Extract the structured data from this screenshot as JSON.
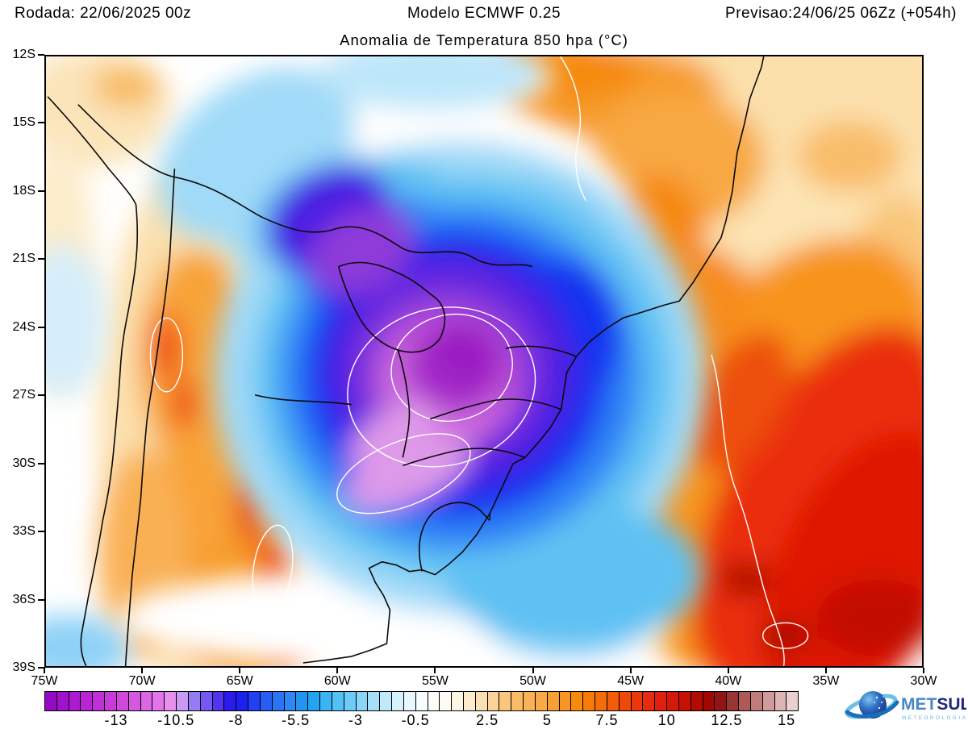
{
  "header": {
    "run": "Rodada: 22/06/2025 00z",
    "model": "Modelo ECMWF 0.25",
    "valid": "Previsao:24/06/25 06Zz (+054h)"
  },
  "title": "Anomalia de Temperatura 850 hpa (°C)",
  "map": {
    "lat_ticks": [
      "12S",
      "15S",
      "18S",
      "21S",
      "24S",
      "27S",
      "30S",
      "33S",
      "36S",
      "39S"
    ],
    "lon_ticks": [
      "75W",
      "70W",
      "65W",
      "60W",
      "55W",
      "50W",
      "45W",
      "40W",
      "35W",
      "30W"
    ]
  },
  "colorbar": {
    "min": -16,
    "max": 15.5,
    "step": 0.5,
    "tick_values": [
      -13,
      -10.5,
      -8,
      -5.5,
      -3,
      -0.5,
      2.5,
      5,
      7.5,
      10,
      12.5,
      15
    ],
    "tick_labels": [
      "-13",
      "-10.5",
      "-8",
      "-5.5",
      "-3",
      "-0.5",
      "2.5",
      "5",
      "7.5",
      "10",
      "12.5",
      "15"
    ],
    "anchors": [
      [
        -16,
        "#8f06c4"
      ],
      [
        -15,
        "#a816ce"
      ],
      [
        -14,
        "#bc2ad4"
      ],
      [
        -13,
        "#cd41da"
      ],
      [
        -12,
        "#d95ee2"
      ],
      [
        -11,
        "#e47ceb"
      ],
      [
        -10.5,
        "#eba4f1"
      ],
      [
        -10,
        "#a98df4"
      ],
      [
        -9.5,
        "#8468f2"
      ],
      [
        -9,
        "#6647f0"
      ],
      [
        -8.5,
        "#3c22ee"
      ],
      [
        -8,
        "#1b13ee"
      ],
      [
        -7.5,
        "#1e2ff2"
      ],
      [
        -7,
        "#2450f4"
      ],
      [
        -6.5,
        "#2a68f5"
      ],
      [
        -6,
        "#2e7ff6"
      ],
      [
        -5.5,
        "#2b8ff2"
      ],
      [
        -5,
        "#189aef"
      ],
      [
        -4.5,
        "#2fabf3"
      ],
      [
        -4,
        "#49bbf5"
      ],
      [
        -3.5,
        "#5fc6f6"
      ],
      [
        -3,
        "#79d0f7"
      ],
      [
        -2.5,
        "#97dbf8"
      ],
      [
        -2,
        "#b3e5fa"
      ],
      [
        -1.5,
        "#cceefb"
      ],
      [
        -1,
        "#e0f5fd"
      ],
      [
        -0.5,
        "#f0fafe"
      ],
      [
        0,
        "#ffffff"
      ],
      [
        1,
        "#fefaf0"
      ],
      [
        1.5,
        "#fdf1d8"
      ],
      [
        2,
        "#fce5bd"
      ],
      [
        2.5,
        "#fbd9a2"
      ],
      [
        3,
        "#fbcd89"
      ],
      [
        3.5,
        "#fac170"
      ],
      [
        4,
        "#f9b75e"
      ],
      [
        4.5,
        "#f9ad4d"
      ],
      [
        5,
        "#f8a43d"
      ],
      [
        5.5,
        "#f89b2e"
      ],
      [
        6,
        "#f78f1b"
      ],
      [
        6.5,
        "#f68307"
      ],
      [
        7,
        "#f57407"
      ],
      [
        7.5,
        "#f3650b"
      ],
      [
        8,
        "#f05208"
      ],
      [
        8.5,
        "#ed3f06"
      ],
      [
        9,
        "#e93110"
      ],
      [
        9.5,
        "#e52410"
      ],
      [
        10,
        "#da1c0b"
      ],
      [
        10.5,
        "#cf1405"
      ],
      [
        11,
        "#bb0e02"
      ],
      [
        11.5,
        "#a80700"
      ],
      [
        12,
        "#930b06"
      ],
      [
        12.5,
        "#8f1f1f"
      ],
      [
        13,
        "#a84848"
      ],
      [
        13.5,
        "#b86a6a"
      ],
      [
        14,
        "#c88e8e"
      ],
      [
        14.5,
        "#d6a8a8"
      ],
      [
        15,
        "#e4c2c2"
      ],
      [
        15.5,
        "#f2dada"
      ]
    ]
  },
  "logo": {
    "name_primary": "MET",
    "name_secondary": "SUL",
    "subtitle": "METEOROLOGIA",
    "color_primary": "#4a87c8",
    "color_secondary": "#202a78",
    "color_subtitle": "#5fb2dc"
  }
}
